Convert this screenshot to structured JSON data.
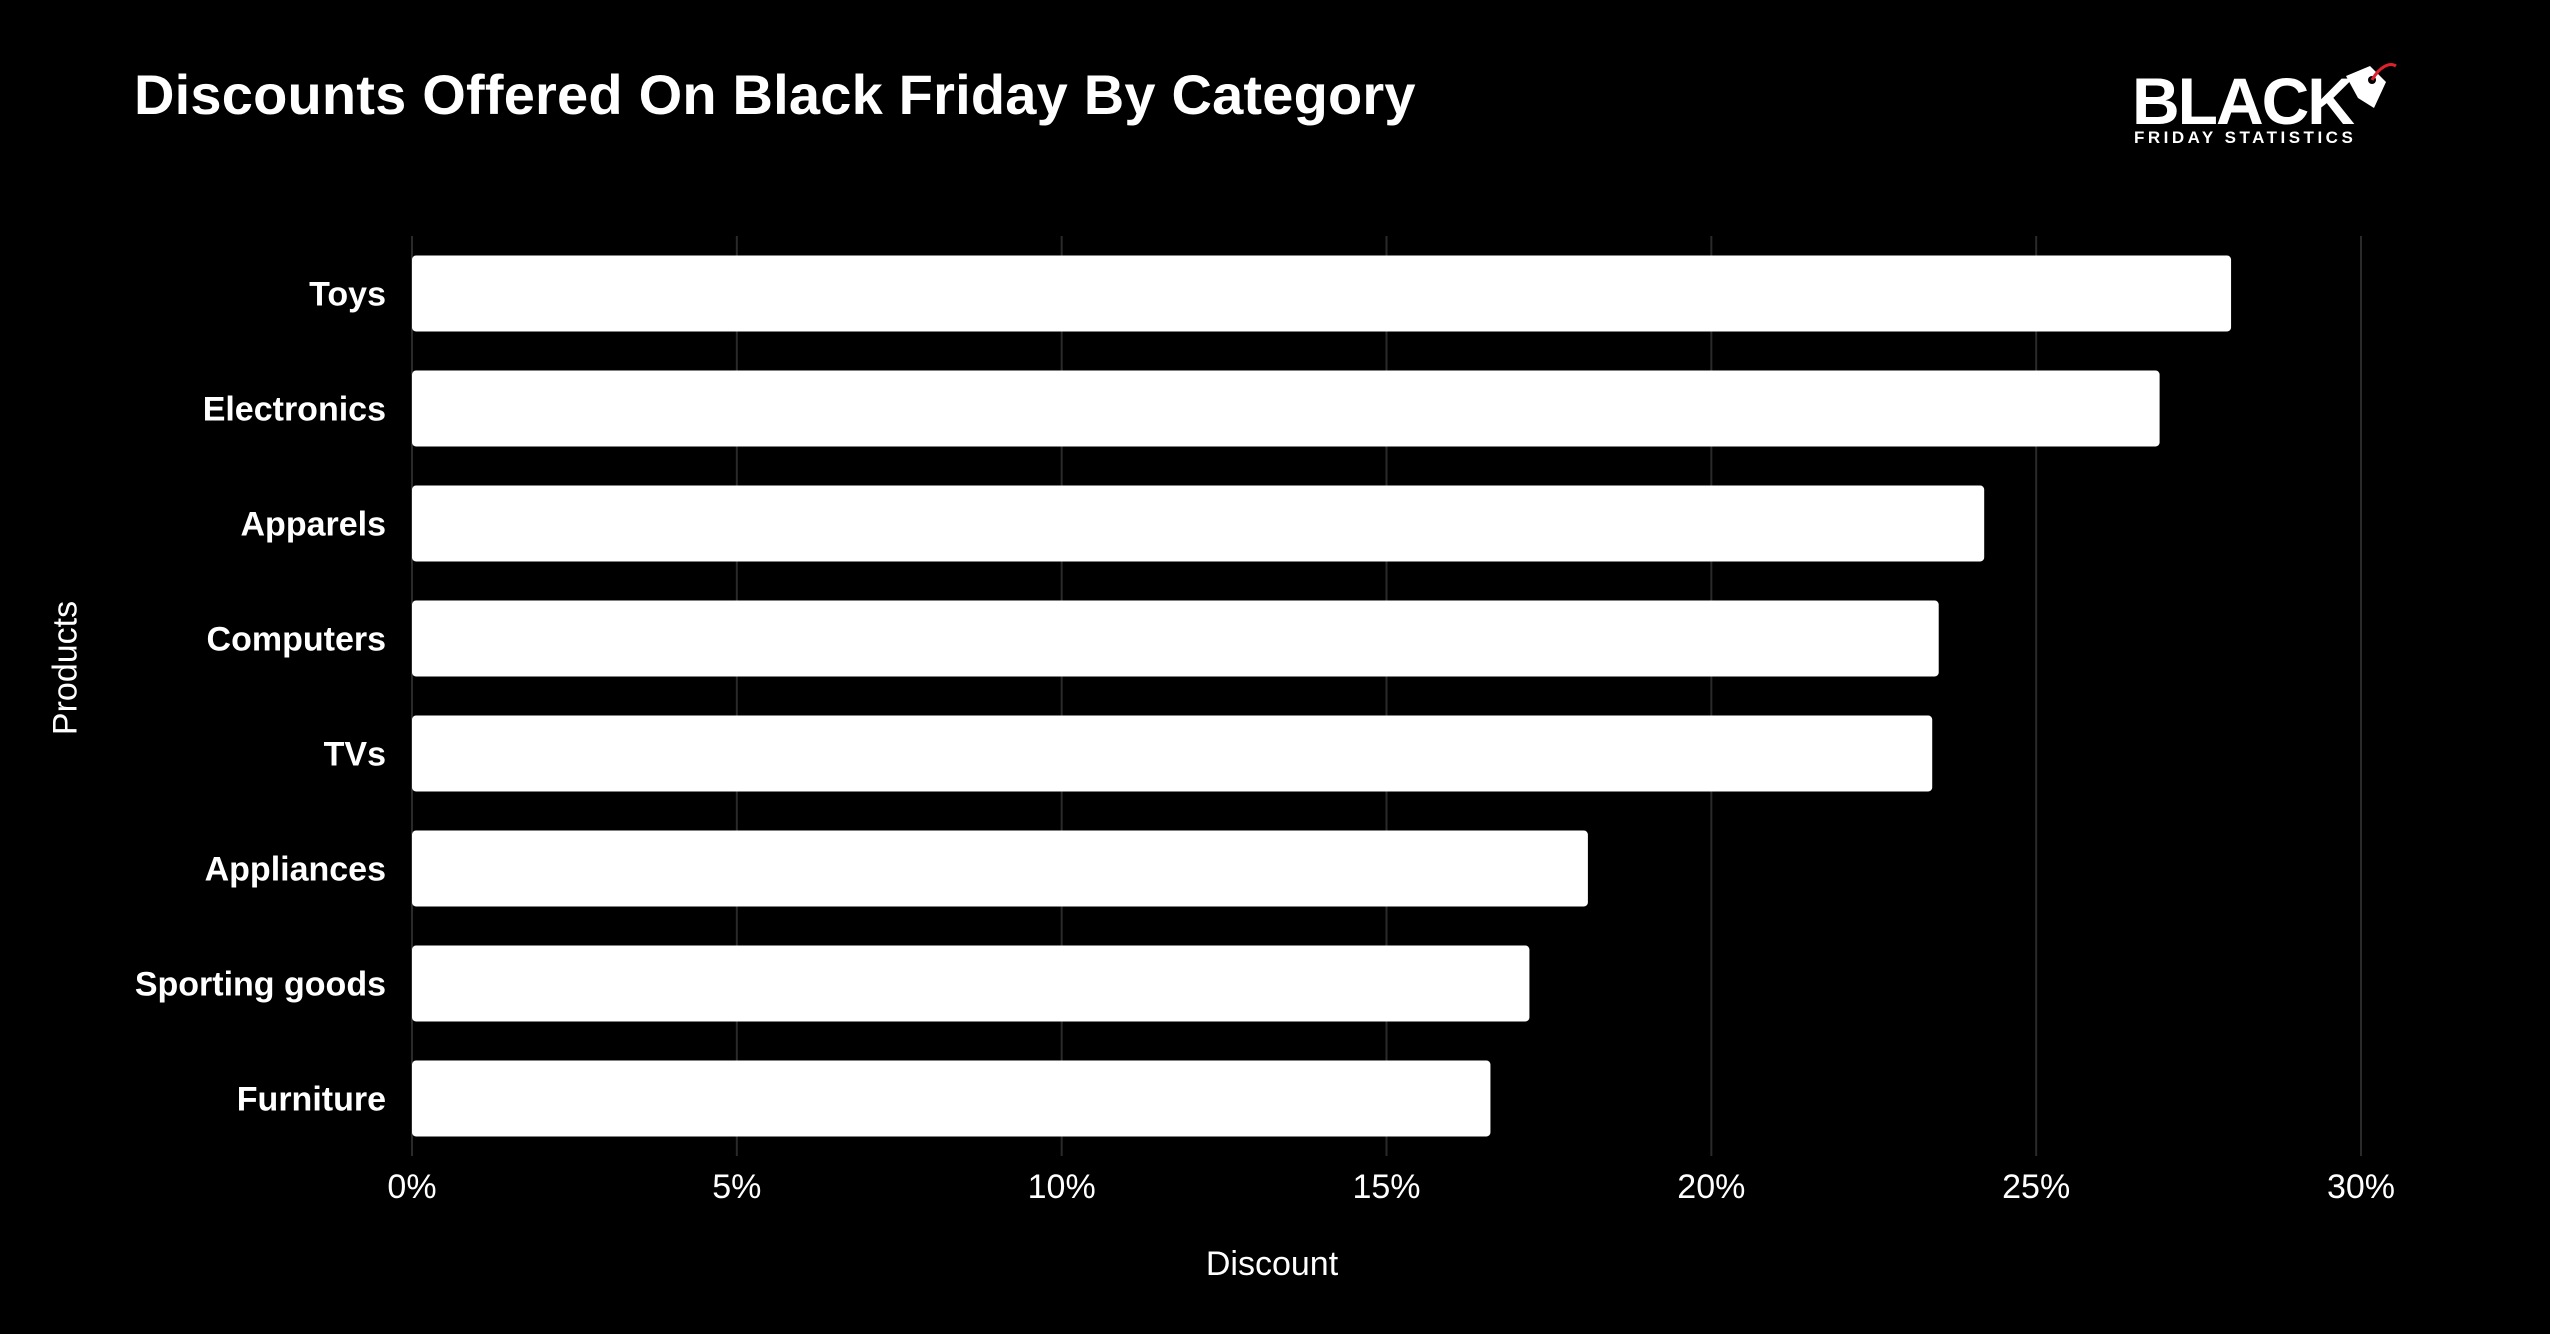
{
  "colors": {
    "background": "#000000",
    "bar": "#ffffff",
    "text": "#ffffff",
    "gridline": "#2a2a2a",
    "logo_accent": "#e0202a"
  },
  "logo": {
    "main": "BLACK",
    "sub": "FRIDAY STATISTICS",
    "icon": "price-tag-icon"
  },
  "chart_data": {
    "type": "bar",
    "orientation": "horizontal",
    "title": "Discounts Offered On Black Friday By Category",
    "xlabel": "Discount",
    "ylabel": "Products",
    "categories": [
      "Toys",
      "Electronics",
      "Apparels",
      "Computers",
      "TVs",
      "Appliances",
      "Sporting goods",
      "Furniture"
    ],
    "values": [
      28.0,
      26.9,
      24.2,
      23.5,
      23.4,
      18.1,
      17.2,
      16.6
    ],
    "unit": "%",
    "xlim": [
      0,
      30
    ],
    "xticks": [
      0,
      5,
      10,
      15,
      20,
      25,
      30
    ],
    "xtick_labels": [
      "0%",
      "5%",
      "10%",
      "15%",
      "20%",
      "25%",
      "30%"
    ],
    "grid": "vertical",
    "legend": "none"
  }
}
